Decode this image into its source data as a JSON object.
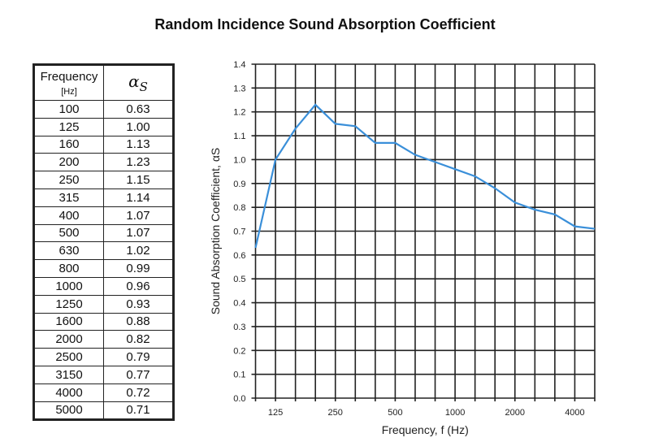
{
  "title": "Random Incidence Sound Absorption Coefficient",
  "table": {
    "header_freq": "Frequency",
    "header_unit": "[Hz]",
    "header_alpha": "α",
    "header_alpha_sub": "S",
    "rows": [
      [
        "100",
        "0.63"
      ],
      [
        "125",
        "1.00"
      ],
      [
        "160",
        "1.13"
      ],
      [
        "200",
        "1.23"
      ],
      [
        "250",
        "1.15"
      ],
      [
        "315",
        "1.14"
      ],
      [
        "400",
        "1.07"
      ],
      [
        "500",
        "1.07"
      ],
      [
        "630",
        "1.02"
      ],
      [
        "800",
        "0.99"
      ],
      [
        "1000",
        "0.96"
      ],
      [
        "1250",
        "0.93"
      ],
      [
        "1600",
        "0.88"
      ],
      [
        "2000",
        "0.82"
      ],
      [
        "2500",
        "0.79"
      ],
      [
        "3150",
        "0.77"
      ],
      [
        "4000",
        "0.72"
      ],
      [
        "5000",
        "0.71"
      ]
    ]
  },
  "chart_data": {
    "type": "line",
    "title": "Random Incidence Sound Absorption Coefficient",
    "xlabel": "Frequency, f (Hz)",
    "ylabel": "Sound Absorption Coefficient,  αS",
    "x": [
      100,
      125,
      160,
      200,
      250,
      315,
      400,
      500,
      630,
      800,
      1000,
      1250,
      1600,
      2000,
      2500,
      3150,
      4000,
      5000
    ],
    "series": [
      {
        "name": "αS",
        "color": "#3a8fd9",
        "values": [
          0.63,
          1.0,
          1.13,
          1.23,
          1.15,
          1.14,
          1.07,
          1.07,
          1.02,
          0.99,
          0.96,
          0.93,
          0.88,
          0.82,
          0.79,
          0.77,
          0.72,
          0.71
        ]
      }
    ],
    "xticks": [
      "125",
      "250",
      "500",
      "1000",
      "2000",
      "4000"
    ],
    "xtick_values": [
      125,
      250,
      500,
      1000,
      2000,
      4000
    ],
    "yticks": [
      "0.0",
      "0.1",
      "0.2",
      "0.3",
      "0.4",
      "0.5",
      "0.6",
      "0.7",
      "0.8",
      "0.9",
      "1.0",
      "1.1",
      "1.2",
      "1.3",
      "1.4"
    ],
    "ylim": [
      0,
      1.4
    ],
    "xscale": "log (one-third octave bands)",
    "grid": true
  }
}
